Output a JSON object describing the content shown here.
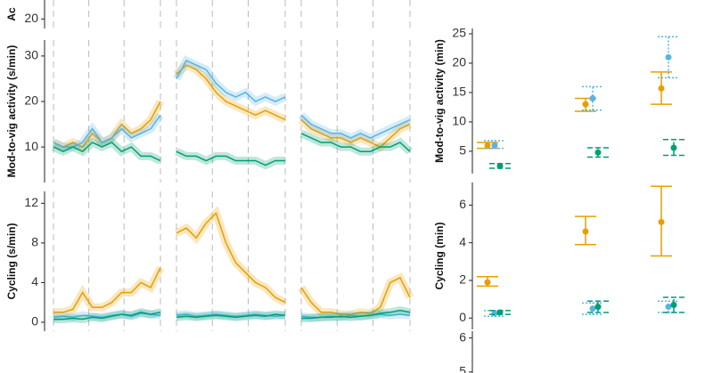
{
  "chart_data": [
    {
      "type": "axis",
      "ylabel": "Ac",
      "ylim": [
        17.5,
        25
      ],
      "yticks": [
        20
      ]
    },
    {
      "type": "line",
      "ylabel": "Mod-to-vig activity (s/min)",
      "ylim": [
        2.2,
        33.5
      ],
      "yticks": [
        10,
        20,
        30
      ],
      "facets": [
        {
          "series": [
            {
              "color": "#E69F00",
              "values": [
                11,
                10,
                11,
                10,
                13,
                11,
                12,
                15,
                13,
                14,
                16,
                20
              ]
            },
            {
              "color": "#56B4E9",
              "values": [
                11,
                10,
                10,
                11,
                14,
                11,
                12,
                14,
                12,
                13,
                14,
                17
              ]
            },
            {
              "color": "#009E73",
              "values": [
                10,
                9,
                10,
                9,
                11,
                10,
                11,
                9,
                10,
                8,
                8,
                7
              ]
            }
          ]
        },
        {
          "series": [
            {
              "color": "#E69F00",
              "values": [
                26,
                28,
                27,
                25,
                22,
                20,
                19,
                18,
                17,
                18,
                17,
                16
              ]
            },
            {
              "color": "#56B4E9",
              "values": [
                25,
                29,
                28,
                27,
                24,
                22,
                21,
                22,
                20,
                21,
                20,
                21
              ]
            },
            {
              "color": "#009E73",
              "values": [
                9,
                8,
                8,
                7,
                8,
                8,
                7,
                7,
                7,
                6,
                7,
                7
              ]
            }
          ]
        },
        {
          "series": [
            {
              "color": "#E69F00",
              "values": [
                16,
                14,
                13,
                12,
                12,
                11,
                12,
                11,
                10,
                12,
                14,
                15
              ]
            },
            {
              "color": "#56B4E9",
              "values": [
                17,
                15,
                14,
                13,
                13,
                12,
                13,
                12,
                13,
                14,
                15,
                16
              ]
            },
            {
              "color": "#009E73",
              "values": [
                13,
                12,
                11,
                11,
                10,
                10,
                9,
                9,
                10,
                10,
                11,
                9
              ]
            }
          ]
        }
      ]
    },
    {
      "type": "line",
      "ylabel": "Cycling (s/min)",
      "ylim": [
        -0.9,
        13.2
      ],
      "yticks": [
        0,
        4,
        8,
        12
      ],
      "facets": [
        {
          "series": [
            {
              "color": "#E69F00",
              "values": [
                1,
                1,
                1.3,
                3,
                1.5,
                1.5,
                2,
                3,
                3,
                4,
                3.5,
                5.5
              ]
            },
            {
              "color": "#56B4E9",
              "values": [
                0.5,
                0.6,
                0.5,
                0.7,
                0.6,
                0.5,
                0.7,
                0.8,
                0.6,
                0.9,
                0.8,
                0.7
              ]
            },
            {
              "color": "#009E73",
              "values": [
                0.3,
                0.3,
                0.4,
                0.3,
                0.5,
                0.4,
                0.6,
                0.8,
                0.7,
                1,
                0.8,
                1
              ]
            }
          ]
        },
        {
          "series": [
            {
              "color": "#E69F00",
              "values": [
                9,
                9.5,
                8.5,
                10,
                11,
                8,
                6,
                5,
                4,
                3.5,
                2.5,
                2
              ]
            },
            {
              "color": "#56B4E9",
              "values": [
                0.7,
                0.8,
                0.6,
                0.7,
                0.8,
                0.7,
                0.6,
                0.7,
                0.8,
                0.7,
                0.6,
                0.7
              ]
            },
            {
              "color": "#009E73",
              "values": [
                0.5,
                0.6,
                0.5,
                0.6,
                0.7,
                0.6,
                0.5,
                0.6,
                0.7,
                0.6,
                0.8,
                0.7
              ]
            }
          ]
        },
        {
          "series": [
            {
              "color": "#E69F00",
              "values": [
                3.5,
                2,
                1,
                1,
                0.8,
                0.8,
                1,
                0.9,
                1.5,
                4,
                4.5,
                2.5
              ]
            },
            {
              "color": "#56B4E9",
              "values": [
                0.6,
                0.5,
                0.5,
                0.6,
                0.5,
                0.7,
                0.6,
                0.7,
                0.8,
                0.7,
                0.8,
                0.7
              ]
            },
            {
              "color": "#009E73",
              "values": [
                0.4,
                0.4,
                0.5,
                0.5,
                0.6,
                0.5,
                0.6,
                0.7,
                0.9,
                1,
                1.2,
                1
              ]
            }
          ]
        }
      ]
    },
    {
      "type": "errorbar",
      "ylabel": "Mod-to-vig activity (min)",
      "ylim": [
        1.2,
        25.9
      ],
      "yticks": [
        5,
        10,
        15,
        20,
        25
      ],
      "series": [
        {
          "color": "#E69F00",
          "dash": "none",
          "values": [
            6.0,
            13.0,
            15.7
          ],
          "lower": [
            5.5,
            11.8,
            13
          ],
          "upper": [
            6.5,
            14,
            18.5
          ]
        },
        {
          "color": "#56B4E9",
          "dash": "2,2",
          "values": [
            6.0,
            14.0,
            21
          ],
          "lower": [
            5.5,
            12,
            17.5
          ],
          "upper": [
            6.8,
            16,
            24.5
          ]
        },
        {
          "color": "#009E73",
          "dash": "6,3",
          "values": [
            2.5,
            4.8,
            5.6
          ],
          "lower": [
            2.1,
            4,
            4.3
          ],
          "upper": [
            2.9,
            5.6,
            7
          ]
        }
      ]
    },
    {
      "type": "errorbar",
      "ylabel": "Cycling (min)",
      "ylim": [
        -0.6,
        7.2
      ],
      "yticks": [
        0,
        2,
        4,
        6
      ],
      "series": [
        {
          "color": "#E69F00",
          "dash": "none",
          "values": [
            1.9,
            4.6,
            5.1
          ],
          "lower": [
            1.7,
            3.9,
            3.3
          ],
          "upper": [
            2.2,
            5.4,
            7.0
          ]
        },
        {
          "color": "#56B4E9",
          "dash": "2,2",
          "values": [
            0.25,
            0.5,
            0.6
          ],
          "lower": [
            0.1,
            0.2,
            0.3
          ],
          "upper": [
            0.4,
            0.8,
            0.9
          ]
        },
        {
          "color": "#009E73",
          "dash": "6,3",
          "values": [
            0.3,
            0.6,
            0.7
          ],
          "lower": [
            0.2,
            0.3,
            0.3
          ],
          "upper": [
            0.4,
            0.9,
            1.1
          ]
        }
      ]
    },
    {
      "type": "axis",
      "ylim": [
        4.97,
        6.2
      ],
      "yticks": [
        5,
        6
      ]
    }
  ]
}
